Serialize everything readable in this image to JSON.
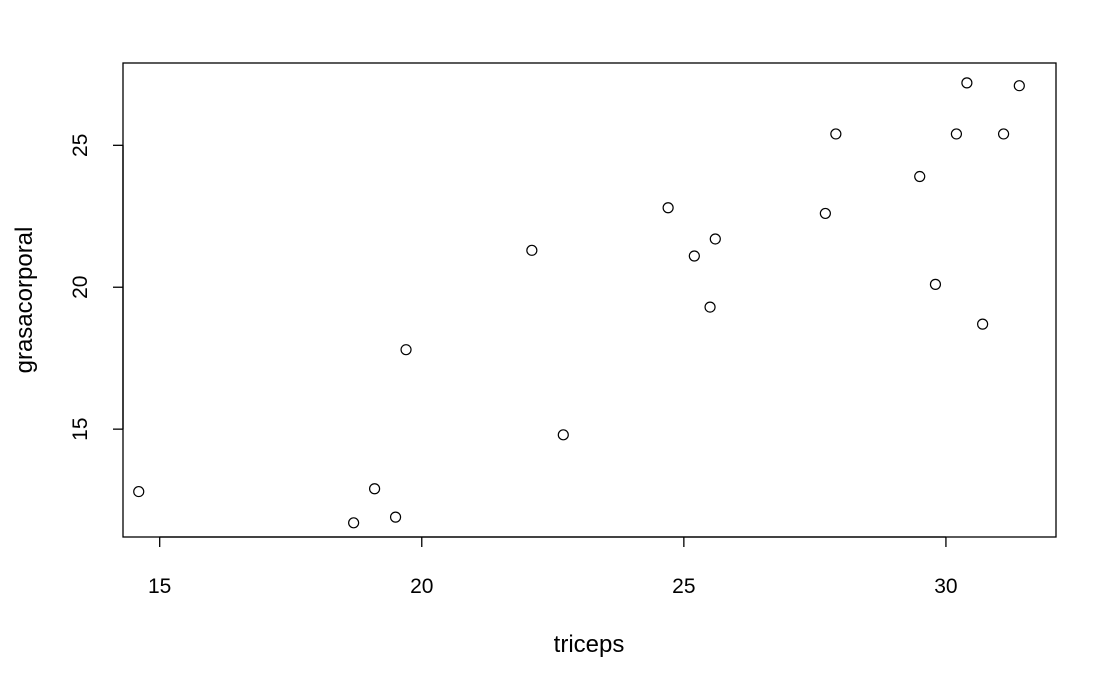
{
  "chart_data": {
    "type": "scatter",
    "title": "",
    "xlabel": "triceps",
    "ylabel": "grasacorporal",
    "xlim": [
      14.3,
      32.1
    ],
    "ylim": [
      11.2,
      27.9
    ],
    "xticks": [
      15,
      20,
      25,
      30
    ],
    "yticks": [
      15,
      20,
      25
    ],
    "grid": false,
    "marker": "open-circle",
    "series": [
      {
        "name": "grasacorporal vs triceps",
        "x": [
          14.6,
          18.7,
          19.1,
          19.5,
          19.7,
          22.1,
          22.7,
          24.7,
          25.2,
          25.5,
          25.6,
          27.7,
          27.9,
          29.5,
          29.8,
          30.2,
          30.4,
          30.7,
          31.1,
          31.4
        ],
        "y": [
          12.8,
          11.7,
          12.9,
          11.9,
          17.8,
          21.3,
          14.8,
          22.8,
          21.1,
          19.3,
          21.7,
          22.6,
          25.4,
          23.9,
          20.1,
          25.4,
          27.2,
          18.7,
          25.4,
          27.1
        ]
      }
    ]
  },
  "colors": {
    "axis": "#000000",
    "marker_stroke": "#000000",
    "background": "#ffffff"
  }
}
